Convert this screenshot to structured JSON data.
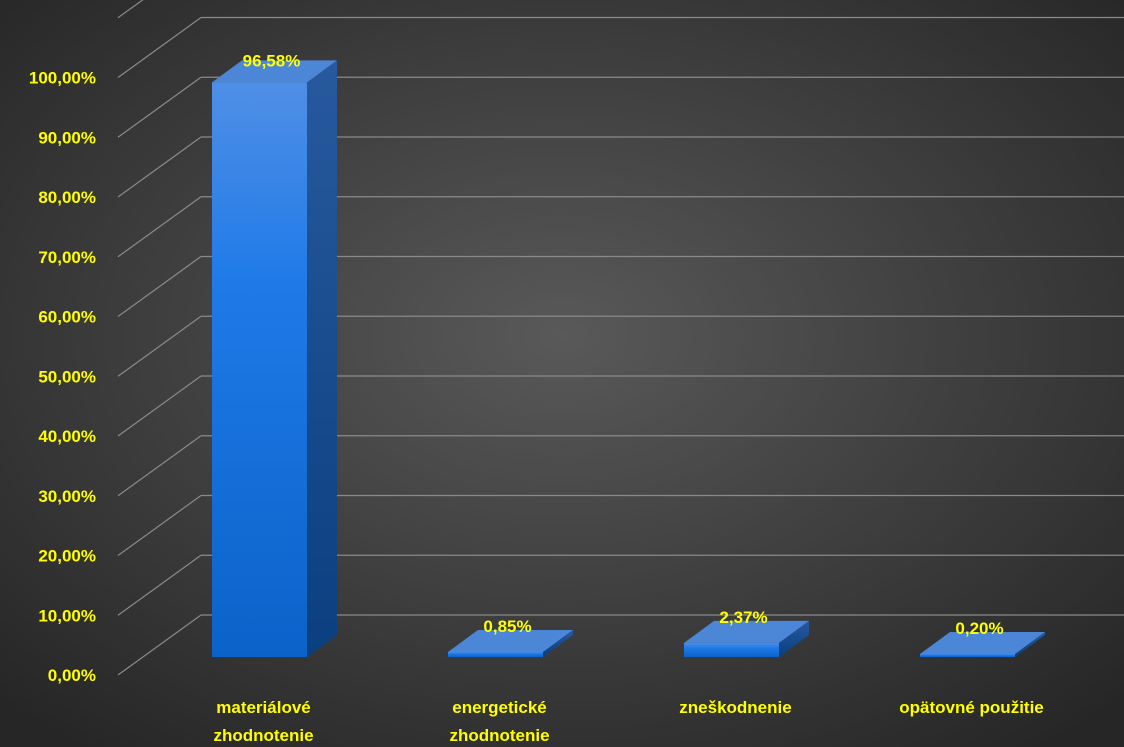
{
  "chart_data": {
    "type": "bar",
    "categories": [
      [
        "materiálové",
        "zhodnotenie"
      ],
      [
        "energetické",
        "zhodnotenie"
      ],
      [
        "zneškodnenie"
      ],
      [
        "opätovné použitie"
      ]
    ],
    "values": [
      96.58,
      0.85,
      2.37,
      0.2
    ],
    "data_labels": [
      "96,58%",
      "0,85%",
      "2,37%",
      "0,20%"
    ],
    "y_ticks": [
      {
        "value": 0,
        "label": "0,00%"
      },
      {
        "value": 10,
        "label": "10,00%"
      },
      {
        "value": 20,
        "label": "20,00%"
      },
      {
        "value": 30,
        "label": "30,00%"
      },
      {
        "value": 40,
        "label": "40,00%"
      },
      {
        "value": 50,
        "label": "50,00%"
      },
      {
        "value": 60,
        "label": "60,00%"
      },
      {
        "value": 70,
        "label": "70,00%"
      },
      {
        "value": 80,
        "label": "80,00%"
      },
      {
        "value": 90,
        "label": "90,00%"
      },
      {
        "value": 100,
        "label": "100,00%"
      }
    ],
    "ylim": [
      0,
      110
    ],
    "grid": true,
    "title": "",
    "xlabel": "",
    "ylabel": "",
    "three_d": true,
    "colors": {
      "background": "#2f2f2f",
      "bar_front": "#1a7ae0",
      "bar_side": "#0f4f9a",
      "bar_top": "#4c86d6",
      "grid": "#8a8a8a",
      "text": "#ffff00"
    }
  }
}
